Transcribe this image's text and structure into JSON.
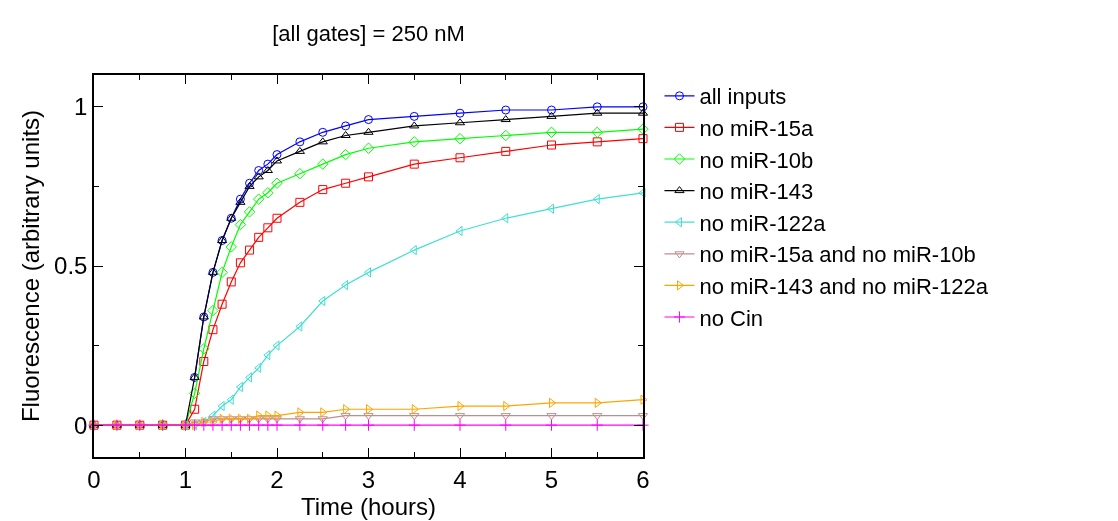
{
  "chart_data": {
    "type": "line",
    "title": "[all gates] = 250 nM",
    "xlabel": "Time (hours)",
    "ylabel": "Fluorescence (arbitrary units)",
    "x": [
      0,
      0.25,
      0.5,
      0.75,
      1,
      1.1,
      1.2,
      1.3,
      1.4,
      1.5,
      1.6,
      1.7,
      1.8,
      1.9,
      2,
      2.25,
      2.5,
      2.75,
      3,
      3.5,
      4,
      4.5,
      5,
      5.5,
      6
    ],
    "xlim": [
      0,
      6
    ],
    "ylim": [
      -0.1,
      1.1
    ],
    "xticks": [
      0,
      {
        "value": 0.5,
        "label": null
      },
      1,
      {
        "value": 1.5,
        "label": null
      },
      2,
      {
        "value": 2.5,
        "label": null
      },
      3,
      {
        "value": 3.5,
        "label": null
      },
      4,
      {
        "value": 4.5,
        "label": null
      },
      5,
      {
        "value": 5.5,
        "label": null
      },
      6
    ],
    "yticks": [
      0,
      {
        "value": 0.25,
        "label": null
      },
      0.5,
      {
        "value": 0.75,
        "label": null
      },
      1
    ],
    "legend": "top right",
    "line_style": "solid",
    "series": [
      {
        "name": "all inputs",
        "color": "#0000ff",
        "marker": "circle",
        "values": [
          null,
          null,
          null,
          null,
          null,
          0.15,
          0.34,
          0.48,
          0.58,
          0.65,
          0.71,
          0.76,
          0.8,
          0.82,
          0.85,
          0.89,
          0.92,
          0.94,
          0.96,
          0.97,
          0.98,
          0.99,
          0.99,
          1.0,
          1.0
        ]
      },
      {
        "name": "no miR-15a",
        "color": "#ff0000",
        "marker": "square",
        "values": [
          0,
          0,
          0,
          0,
          0,
          0.05,
          0.2,
          0.3,
          0.38,
          0.45,
          0.51,
          0.55,
          0.59,
          0.62,
          0.65,
          0.7,
          0.74,
          0.76,
          0.78,
          0.82,
          0.84,
          0.86,
          0.88,
          0.89,
          0.9
        ]
      },
      {
        "name": "no miR-10b",
        "color": "#00ff00",
        "marker": "diamond",
        "values": [
          null,
          null,
          null,
          0,
          0,
          0.1,
          0.24,
          0.36,
          0.48,
          0.56,
          0.63,
          0.67,
          0.71,
          0.73,
          0.76,
          0.79,
          0.82,
          0.85,
          0.87,
          0.89,
          0.9,
          0.91,
          0.92,
          0.92,
          0.93
        ]
      },
      {
        "name": "no miR-143",
        "color": "#000000",
        "marker": "triangle",
        "values": [
          0,
          0,
          0,
          0,
          0,
          0.15,
          0.34,
          0.48,
          0.58,
          0.65,
          0.7,
          0.75,
          0.78,
          0.8,
          0.83,
          0.86,
          0.89,
          0.91,
          0.92,
          0.94,
          0.95,
          0.96,
          0.97,
          0.98,
          0.98
        ]
      },
      {
        "name": "no miR-122a",
        "color": "#40e0d0",
        "marker": "triangle-left",
        "values": [
          null,
          null,
          null,
          null,
          0,
          0,
          0.01,
          0.03,
          0.06,
          0.08,
          0.12,
          0.15,
          0.18,
          0.22,
          0.25,
          0.31,
          0.39,
          0.44,
          0.48,
          0.55,
          0.61,
          0.65,
          0.68,
          0.71,
          0.73
        ]
      },
      {
        "name": "no miR-15a and no miR-10b",
        "color": "#bc8f8f",
        "marker": "triangle-down",
        "values": [
          0,
          0,
          0,
          0,
          0,
          0.01,
          0.01,
          0.02,
          0.02,
          0.02,
          0.02,
          0.02,
          0.02,
          0.02,
          0.02,
          0.02,
          0.02,
          0.03,
          0.03,
          0.03,
          0.03,
          0.03,
          0.03,
          0.03,
          0.03
        ]
      },
      {
        "name": "no miR-143 and no miR-122a",
        "color": "#ffa500",
        "marker": "triangle-right",
        "values": [
          0,
          0,
          0,
          0,
          0,
          0,
          0.01,
          0.01,
          0.02,
          0.02,
          0.02,
          0.02,
          0.03,
          0.03,
          0.03,
          0.04,
          0.04,
          0.05,
          0.05,
          0.05,
          0.06,
          0.06,
          0.07,
          0.07,
          0.08
        ]
      },
      {
        "name": "no Cin",
        "color": "#ff00ff",
        "marker": "cross",
        "values": [
          0,
          0,
          0,
          0,
          0,
          0,
          0,
          0,
          0,
          0,
          0,
          0,
          0,
          0,
          0,
          0,
          0,
          0,
          0,
          0,
          0,
          0,
          0,
          0,
          0
        ]
      }
    ]
  }
}
